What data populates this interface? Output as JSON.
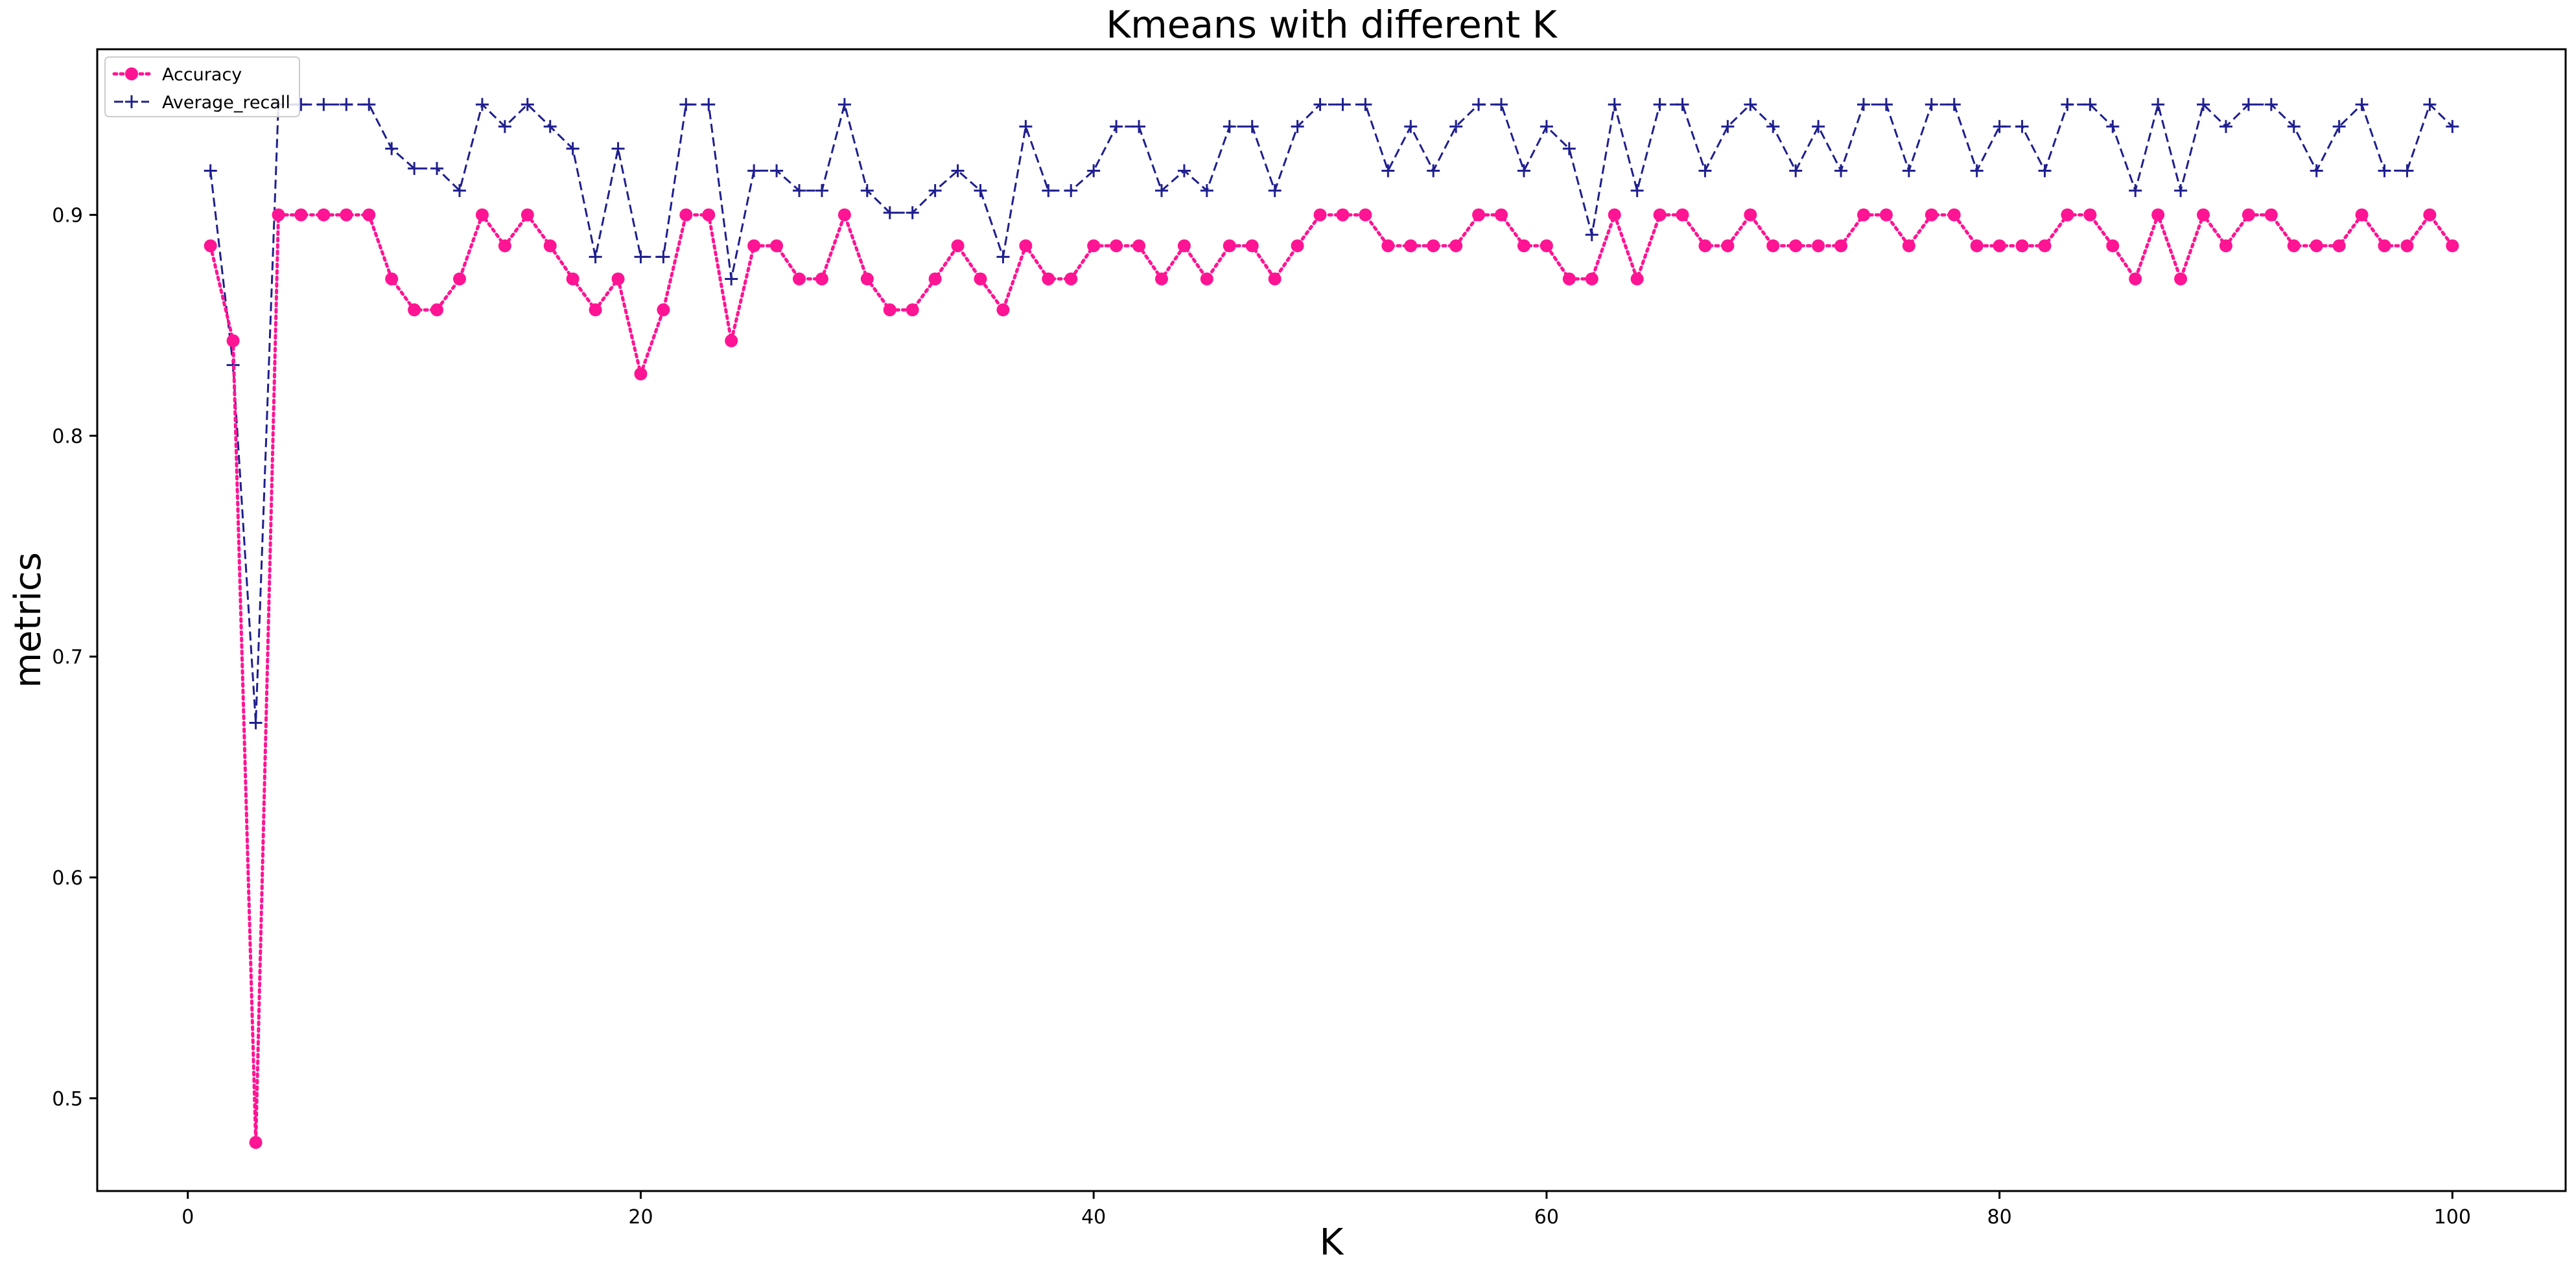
{
  "chart_data": {
    "type": "line",
    "title": "Kmeans with different K",
    "xlabel": "K",
    "ylabel": "metrics",
    "xlim": [
      -4,
      105
    ],
    "ylim": [
      0.458,
      0.975
    ],
    "xticks": [
      0,
      20,
      40,
      60,
      80,
      100
    ],
    "yticks": [
      0.5,
      0.6,
      0.7,
      0.8,
      0.9
    ],
    "xtick_labels": [
      "0",
      "20",
      "40",
      "60",
      "80",
      "100"
    ],
    "ytick_labels": [
      "0.5",
      "0.6",
      "0.7",
      "0.8",
      "0.9"
    ],
    "grid": false,
    "legend_position": "top-left",
    "x": [
      1,
      2,
      3,
      4,
      5,
      6,
      7,
      8,
      9,
      10,
      11,
      12,
      13,
      14,
      15,
      16,
      17,
      18,
      19,
      20,
      21,
      22,
      23,
      24,
      25,
      26,
      27,
      28,
      29,
      30,
      31,
      32,
      33,
      34,
      35,
      36,
      37,
      38,
      39,
      40,
      41,
      42,
      43,
      44,
      45,
      46,
      47,
      48,
      49,
      50,
      51,
      52,
      53,
      54,
      55,
      56,
      57,
      58,
      59,
      60,
      61,
      62,
      63,
      64,
      65,
      66,
      67,
      68,
      69,
      70,
      71,
      72,
      73,
      74,
      75,
      76,
      77,
      78,
      79,
      80,
      81,
      82,
      83,
      84,
      85,
      86,
      87,
      88,
      89,
      90,
      91,
      92,
      93,
      94,
      95,
      96,
      97,
      98,
      99,
      100
    ],
    "series": [
      {
        "name": "Accuracy",
        "color": "#ff1493",
        "linestyle": "dotted",
        "marker": "circle",
        "values": [
          0.886,
          0.843,
          0.48,
          0.9,
          0.9,
          0.9,
          0.9,
          0.9,
          0.871,
          0.857,
          0.857,
          0.871,
          0.9,
          0.886,
          0.9,
          0.886,
          0.871,
          0.857,
          0.871,
          0.828,
          0.857,
          0.9,
          0.9,
          0.843,
          0.886,
          0.886,
          0.871,
          0.871,
          0.9,
          0.871,
          0.857,
          0.857,
          0.871,
          0.886,
          0.871,
          0.857,
          0.886,
          0.871,
          0.871,
          0.886,
          0.886,
          0.886,
          0.871,
          0.886,
          0.871,
          0.886,
          0.886,
          0.871,
          0.886,
          0.9,
          0.9,
          0.9,
          0.886,
          0.886,
          0.886,
          0.886,
          0.9,
          0.9,
          0.886,
          0.886,
          0.871,
          0.871,
          0.9,
          0.871,
          0.9,
          0.9,
          0.886,
          0.886,
          0.9,
          0.886,
          0.886,
          0.886,
          0.886,
          0.9,
          0.9,
          0.886,
          0.9,
          0.9,
          0.886,
          0.886,
          0.886,
          0.886,
          0.9,
          0.9,
          0.886,
          0.871,
          0.9,
          0.871,
          0.9,
          0.886,
          0.9,
          0.9,
          0.886,
          0.886,
          0.886,
          0.9,
          0.886,
          0.886,
          0.9,
          0.886
        ]
      },
      {
        "name": "Average_recall",
        "color": "#1f1f8f",
        "linestyle": "dashed",
        "marker": "plus",
        "values": [
          0.92,
          0.832,
          0.67,
          0.95,
          0.95,
          0.95,
          0.95,
          0.95,
          0.93,
          0.921,
          0.921,
          0.911,
          0.95,
          0.94,
          0.95,
          0.94,
          0.93,
          0.881,
          0.93,
          0.881,
          0.881,
          0.95,
          0.95,
          0.871,
          0.92,
          0.92,
          0.911,
          0.911,
          0.95,
          0.911,
          0.901,
          0.901,
          0.911,
          0.92,
          0.911,
          0.881,
          0.94,
          0.911,
          0.911,
          0.92,
          0.94,
          0.94,
          0.911,
          0.92,
          0.911,
          0.94,
          0.94,
          0.911,
          0.94,
          0.95,
          0.95,
          0.95,
          0.92,
          0.94,
          0.92,
          0.94,
          0.95,
          0.95,
          0.92,
          0.94,
          0.93,
          0.891,
          0.95,
          0.911,
          0.95,
          0.95,
          0.92,
          0.94,
          0.95,
          0.94,
          0.92,
          0.94,
          0.92,
          0.95,
          0.95,
          0.92,
          0.95,
          0.95,
          0.92,
          0.94,
          0.94,
          0.92,
          0.95,
          0.95,
          0.94,
          0.911,
          0.95,
          0.911,
          0.95,
          0.94,
          0.95,
          0.95,
          0.94,
          0.92,
          0.94,
          0.95,
          0.92,
          0.92,
          0.95,
          0.94
        ]
      }
    ]
  }
}
